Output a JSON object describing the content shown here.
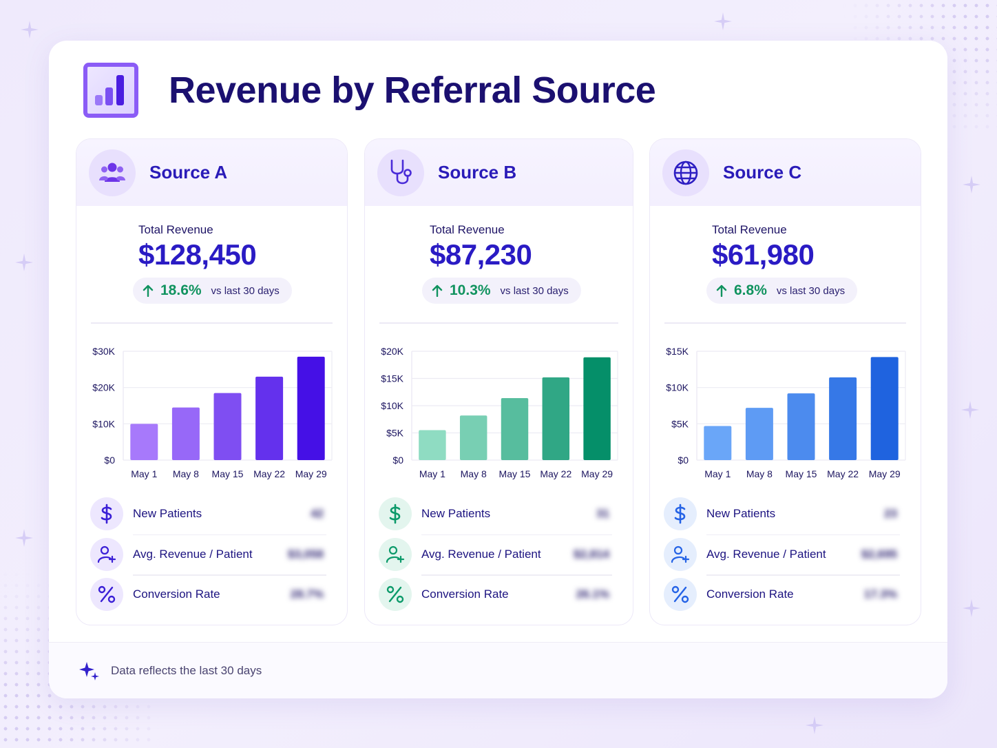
{
  "title": "Revenue by Referral Source",
  "footer": {
    "text": "Data reflects the last 30 days"
  },
  "colors": {
    "accent": "#2a1bc4",
    "positive": "#11935f",
    "sourceA": [
      "#a779fb",
      "#4510e6"
    ],
    "sourceB": [
      "#8fdcc2",
      "#058f69"
    ],
    "sourceC": [
      "#6aa6f8",
      "#1f63df"
    ]
  },
  "cards": [
    {
      "name": "Source A",
      "icon": "users-icon",
      "total_label": "Total Revenue",
      "total_value": "$128,450",
      "change_pct": "18.6%",
      "change_vs": "vs last 30 days",
      "metrics": [
        {
          "label": "New Patients",
          "value": "42",
          "icon": "dollar-icon"
        },
        {
          "label": "Avg. Revenue / Patient",
          "value": "$3,058",
          "icon": "user-plus-icon"
        },
        {
          "label": "Conversion Rate",
          "value": "28.7%",
          "icon": "percent-icon"
        }
      ]
    },
    {
      "name": "Source B",
      "icon": "stethoscope-icon",
      "total_label": "Total Revenue",
      "total_value": "$87,230",
      "change_pct": "10.3%",
      "change_vs": "vs last 30 days",
      "metrics": [
        {
          "label": "New Patients",
          "value": "31",
          "icon": "dollar-icon"
        },
        {
          "label": "Avg. Revenue / Patient",
          "value": "$2,814",
          "icon": "user-plus-icon"
        },
        {
          "label": "Conversion Rate",
          "value": "26.1%",
          "icon": "percent-icon"
        }
      ]
    },
    {
      "name": "Source C",
      "icon": "globe-icon",
      "total_label": "Total Revenue",
      "total_value": "$61,980",
      "change_pct": "6.8%",
      "change_vs": "vs last 30 days",
      "metrics": [
        {
          "label": "New Patients",
          "value": "23",
          "icon": "dollar-icon"
        },
        {
          "label": "Avg. Revenue / Patient",
          "value": "$2,695",
          "icon": "user-plus-icon"
        },
        {
          "label": "Conversion Rate",
          "value": "17.3%",
          "icon": "percent-icon"
        }
      ]
    }
  ],
  "chart_data": [
    {
      "type": "bar",
      "title": "Source A",
      "categories": [
        "May 1",
        "May 8",
        "May 15",
        "May 22",
        "May 29"
      ],
      "values": [
        10000,
        14500,
        18500,
        23000,
        28500
      ],
      "ylim": [
        0,
        30000
      ],
      "yticks": [
        0,
        10000,
        20000,
        30000
      ],
      "ytick_labels": [
        "$0",
        "$10K",
        "$20K",
        "$30K"
      ],
      "xlabel": "",
      "ylabel": "",
      "grid": true
    },
    {
      "type": "bar",
      "title": "Source B",
      "categories": [
        "May 1",
        "May 8",
        "May 15",
        "May 22",
        "May 29"
      ],
      "values": [
        5500,
        8200,
        11400,
        15200,
        18900
      ],
      "ylim": [
        0,
        20000
      ],
      "yticks": [
        0,
        5000,
        10000,
        15000,
        20000
      ],
      "ytick_labels": [
        "$0",
        "$5K",
        "$10K",
        "$15K",
        "$20K"
      ],
      "xlabel": "",
      "ylabel": "",
      "grid": true
    },
    {
      "type": "bar",
      "title": "Source C",
      "categories": [
        "May 1",
        "May 8",
        "May 15",
        "May 22",
        "May 29"
      ],
      "values": [
        4700,
        7200,
        9200,
        11400,
        14200
      ],
      "ylim": [
        0,
        15000
      ],
      "yticks": [
        0,
        5000,
        10000,
        15000
      ],
      "ytick_labels": [
        "$0",
        "$5K",
        "$10K",
        "$15K"
      ],
      "xlabel": "",
      "ylabel": "",
      "grid": true
    }
  ]
}
